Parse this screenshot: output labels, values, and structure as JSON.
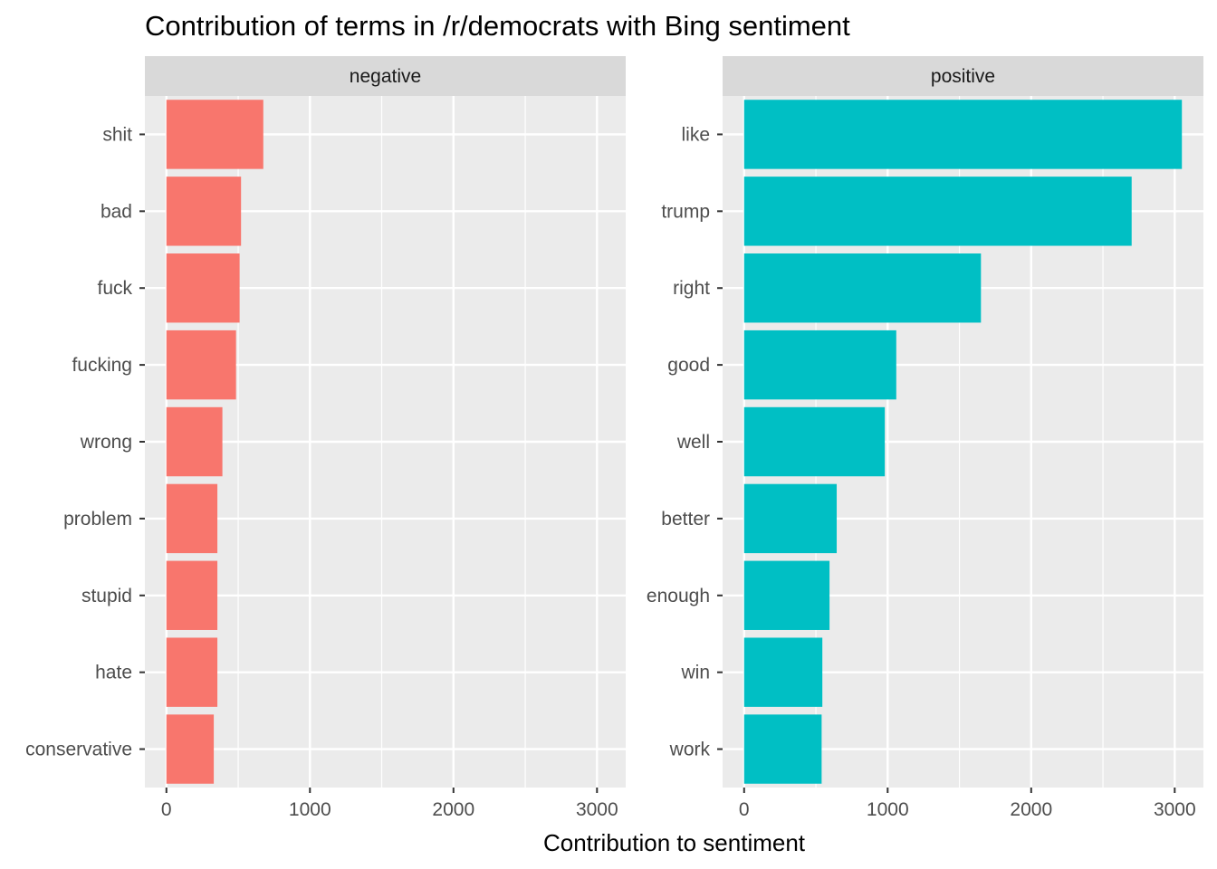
{
  "chart_data": {
    "type": "bar",
    "orientation": "horizontal",
    "title": "Contribution of terms in /r/democrats with Bing sentiment",
    "xlabel": "Contribution to sentiment",
    "ylabel": "",
    "xlim": [
      -150,
      3200
    ],
    "xticks": [
      0,
      1000,
      2000,
      3000
    ],
    "grid": true,
    "legend": "none",
    "panels": [
      {
        "facet": "negative",
        "color": "#F8766D",
        "categories": [
          "shit",
          "bad",
          "fuck",
          "fucking",
          "wrong",
          "problem",
          "stupid",
          "hate",
          "conservative"
        ],
        "values": [
          675,
          520,
          510,
          485,
          390,
          355,
          355,
          355,
          330
        ]
      },
      {
        "facet": "positive",
        "color": "#00BFC4",
        "categories": [
          "like",
          "trump",
          "right",
          "good",
          "well",
          "better",
          "enough",
          "win",
          "work"
        ],
        "values": [
          3050,
          2700,
          1650,
          1060,
          980,
          645,
          595,
          545,
          540
        ]
      }
    ]
  }
}
